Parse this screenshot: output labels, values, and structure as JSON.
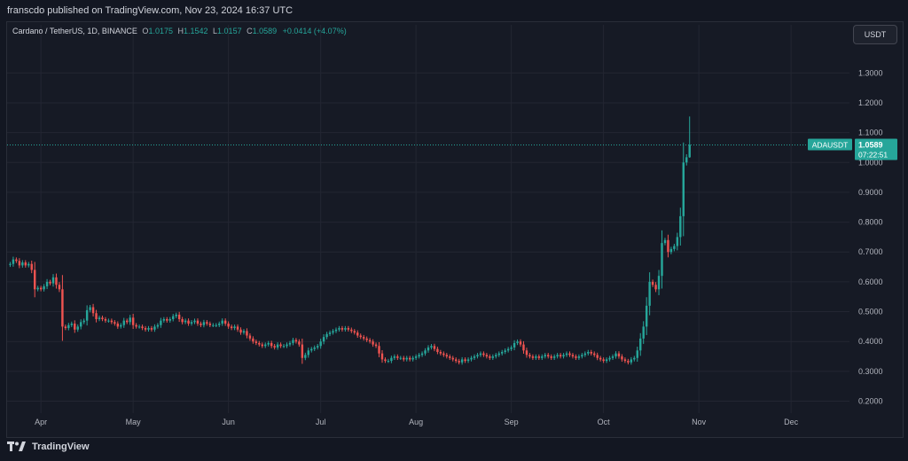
{
  "header": {
    "publisher_line": "franscdo published on TradingView.com, Nov 23, 2024 16:37 UTC"
  },
  "legend": {
    "symbol": "Cardano / TetherUS, 1D, BINANCE",
    "open_label": "O",
    "open": "1.0175",
    "high_label": "H",
    "high": "1.1542",
    "low_label": "L",
    "low": "1.0157",
    "close_label": "C",
    "close": "1.0589",
    "change": "+0.0414 (+4.07%)"
  },
  "currency_button": "USDT",
  "price_badge": {
    "ticker": "ADAUSDT",
    "price": "1.0589",
    "countdown": "07:22:51"
  },
  "footer": {
    "brand": "TradingView"
  },
  "colors": {
    "background": "#131722",
    "up": "#26a69a",
    "down": "#ef5350",
    "grid": "#232632",
    "text": "#b2b5be",
    "last_price_line": "#26a69a"
  },
  "chart_data": {
    "type": "candlestick",
    "symbol": "ADAUSDT",
    "interval": "1D",
    "exchange": "BINANCE",
    "y_ticks": [
      "1.3000",
      "1.2000",
      "1.1000",
      "1.0000",
      "0.9000",
      "0.8000",
      "0.7000",
      "0.6000",
      "0.5000",
      "0.4000",
      "0.3000",
      "0.2000"
    ],
    "ylim": [
      0.16,
      1.39
    ],
    "x_ticks": [
      {
        "label": "Apr",
        "date": "2024-04-01"
      },
      {
        "label": "May",
        "date": "2024-05-01"
      },
      {
        "label": "Jun",
        "date": "2024-06-01"
      },
      {
        "label": "Jul",
        "date": "2024-07-01"
      },
      {
        "label": "Aug",
        "date": "2024-08-01"
      },
      {
        "label": "Sep",
        "date": "2024-09-01"
      },
      {
        "label": "Oct",
        "date": "2024-10-01"
      },
      {
        "label": "Nov",
        "date": "2024-11-01"
      },
      {
        "label": "Dec",
        "date": "2024-12-01"
      }
    ],
    "xlim": [
      "2024-03-21",
      "2024-12-20"
    ],
    "last_price": 1.0589,
    "grid": true,
    "close_series": {
      "start_date": "2024-03-22",
      "note_units": "daily closes in USDT",
      "values": [
        0.66,
        0.675,
        0.67,
        0.655,
        0.665,
        0.655,
        0.66,
        0.64,
        0.575,
        0.58,
        0.575,
        0.585,
        0.6,
        0.595,
        0.615,
        0.59,
        0.575,
        0.45,
        0.445,
        0.455,
        0.46,
        0.44,
        0.45,
        0.465,
        0.47,
        0.505,
        0.515,
        0.495,
        0.475,
        0.48,
        0.475,
        0.47,
        0.47,
        0.465,
        0.46,
        0.45,
        0.455,
        0.47,
        0.465,
        0.48,
        0.455,
        0.45,
        0.45,
        0.445,
        0.44,
        0.445,
        0.44,
        0.45,
        0.455,
        0.47,
        0.475,
        0.47,
        0.475,
        0.485,
        0.49,
        0.475,
        0.465,
        0.47,
        0.46,
        0.465,
        0.47,
        0.46,
        0.455,
        0.465,
        0.46,
        0.455,
        0.455,
        0.455,
        0.46,
        0.47,
        0.46,
        0.45,
        0.445,
        0.45,
        0.44,
        0.43,
        0.435,
        0.42,
        0.41,
        0.4,
        0.395,
        0.39,
        0.385,
        0.39,
        0.395,
        0.385,
        0.38,
        0.39,
        0.385,
        0.385,
        0.39,
        0.395,
        0.405,
        0.4,
        0.39,
        0.345,
        0.355,
        0.37,
        0.375,
        0.38,
        0.385,
        0.4,
        0.415,
        0.425,
        0.43,
        0.435,
        0.44,
        0.445,
        0.44,
        0.445,
        0.44,
        0.435,
        0.43,
        0.42,
        0.415,
        0.41,
        0.405,
        0.4,
        0.39,
        0.385,
        0.36,
        0.34,
        0.335,
        0.335,
        0.345,
        0.35,
        0.345,
        0.345,
        0.34,
        0.345,
        0.34,
        0.345,
        0.35,
        0.355,
        0.36,
        0.37,
        0.38,
        0.385,
        0.375,
        0.365,
        0.36,
        0.355,
        0.35,
        0.345,
        0.34,
        0.335,
        0.33,
        0.34,
        0.335,
        0.34,
        0.345,
        0.35,
        0.355,
        0.36,
        0.355,
        0.35,
        0.345,
        0.35,
        0.355,
        0.36,
        0.365,
        0.37,
        0.375,
        0.38,
        0.395,
        0.4,
        0.39,
        0.37,
        0.355,
        0.35,
        0.345,
        0.35,
        0.345,
        0.35,
        0.355,
        0.35,
        0.345,
        0.35,
        0.355,
        0.35,
        0.355,
        0.36,
        0.355,
        0.35,
        0.345,
        0.35,
        0.355,
        0.36,
        0.365,
        0.36,
        0.355,
        0.345,
        0.34,
        0.335,
        0.34,
        0.345,
        0.35,
        0.36,
        0.35,
        0.34,
        0.335,
        0.33,
        0.34,
        0.345,
        0.37,
        0.41,
        0.45,
        0.52,
        0.6,
        0.59,
        0.575,
        0.62,
        0.73,
        0.74,
        0.7,
        0.71,
        0.72,
        0.75,
        0.82,
        1.0,
        1.0175,
        1.0589
      ]
    }
  }
}
